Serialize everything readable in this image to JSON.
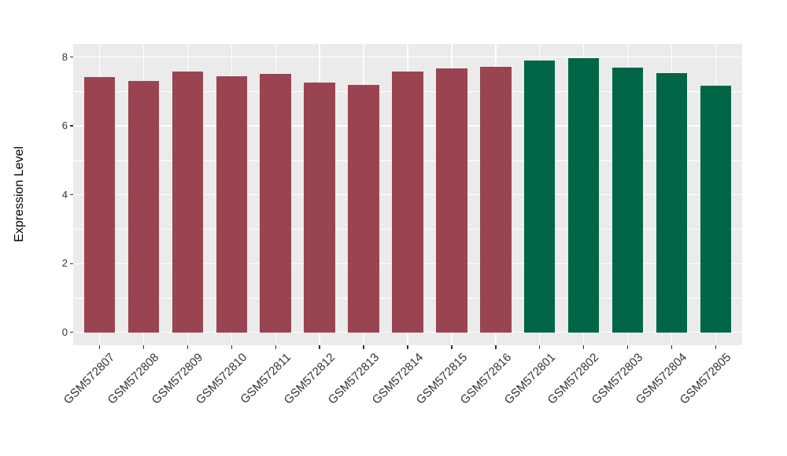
{
  "chart_data": {
    "type": "bar",
    "title": "",
    "xlabel": "",
    "ylabel": "Expression Level",
    "categories": [
      "GSM572807",
      "GSM572808",
      "GSM572809",
      "GSM572810",
      "GSM572811",
      "GSM572812",
      "GSM572813",
      "GSM572814",
      "GSM572815",
      "GSM572816",
      "GSM572801",
      "GSM572802",
      "GSM572803",
      "GSM572804",
      "GSM572805"
    ],
    "values": [
      7.43,
      7.3,
      7.57,
      7.44,
      7.51,
      7.26,
      7.19,
      7.58,
      7.67,
      7.71,
      7.91,
      7.97,
      7.7,
      7.53,
      7.16
    ],
    "bar_colors": [
      "#9a4452",
      "#9a4452",
      "#9a4452",
      "#9a4452",
      "#9a4452",
      "#9a4452",
      "#9a4452",
      "#9a4452",
      "#9a4452",
      "#9a4452",
      "#006647",
      "#006647",
      "#006647",
      "#006647",
      "#006647"
    ],
    "group_colors": {
      "first_group": "#9a4452",
      "second_group": "#006647"
    },
    "y_ticks": [
      0,
      2,
      4,
      6,
      8
    ],
    "y_minor_ticks": [
      1,
      3,
      5,
      7
    ],
    "ylim": [
      -0.37,
      8.38
    ],
    "grid": true,
    "legend": "none",
    "panel_bg": "#ebebeb",
    "grid_color": "#ffffff",
    "tick_text_color": "#333333",
    "axis_title_color": "#000000",
    "tick_mark_color": "#333333"
  }
}
